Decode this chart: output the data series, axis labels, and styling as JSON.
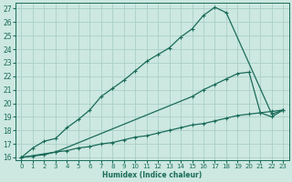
{
  "xlabel": "Humidex (Indice chaleur)",
  "bg_color": "#cce8e0",
  "grid_color": "#aacfc8",
  "line_color": "#1a6b5a",
  "xlim": [
    -0.5,
    23.5
  ],
  "ylim": [
    15.8,
    27.4
  ],
  "xticks": [
    0,
    1,
    2,
    3,
    4,
    5,
    6,
    7,
    8,
    9,
    10,
    11,
    12,
    13,
    14,
    15,
    16,
    17,
    18,
    19,
    20,
    21,
    22,
    23
  ],
  "yticks": [
    16,
    17,
    18,
    19,
    20,
    21,
    22,
    23,
    24,
    25,
    26,
    27
  ],
  "curve1_x": [
    0,
    1,
    2,
    3,
    4,
    5,
    6,
    7,
    8,
    9,
    10,
    11,
    12,
    13,
    14,
    15,
    16,
    17,
    18,
    22,
    23
  ],
  "curve1_y": [
    16,
    16.7,
    17.2,
    17.4,
    18.2,
    18.8,
    19.5,
    20.5,
    21.1,
    21.7,
    22.4,
    23.1,
    23.6,
    24.1,
    24.9,
    25.5,
    26.5,
    27.1,
    26.7,
    19.2,
    19.5
  ],
  "curve2_x": [
    0,
    3,
    15,
    16,
    17,
    18,
    19,
    20,
    21,
    22,
    23
  ],
  "curve2_y": [
    16,
    16.4,
    20.5,
    21.0,
    21.4,
    21.8,
    22.2,
    22.3,
    19.3,
    19.0,
    19.5
  ],
  "curve3_x": [
    0,
    1,
    2,
    3,
    4,
    5,
    6,
    7,
    8,
    9,
    10,
    11,
    12,
    13,
    14,
    15,
    16,
    17,
    18,
    19,
    20,
    21,
    22,
    23
  ],
  "curve3_y": [
    16,
    16.1,
    16.2,
    16.4,
    16.5,
    16.7,
    16.8,
    17.0,
    17.1,
    17.3,
    17.5,
    17.6,
    17.8,
    18.0,
    18.2,
    18.4,
    18.5,
    18.7,
    18.9,
    19.1,
    19.2,
    19.3,
    19.4,
    19.5
  ]
}
